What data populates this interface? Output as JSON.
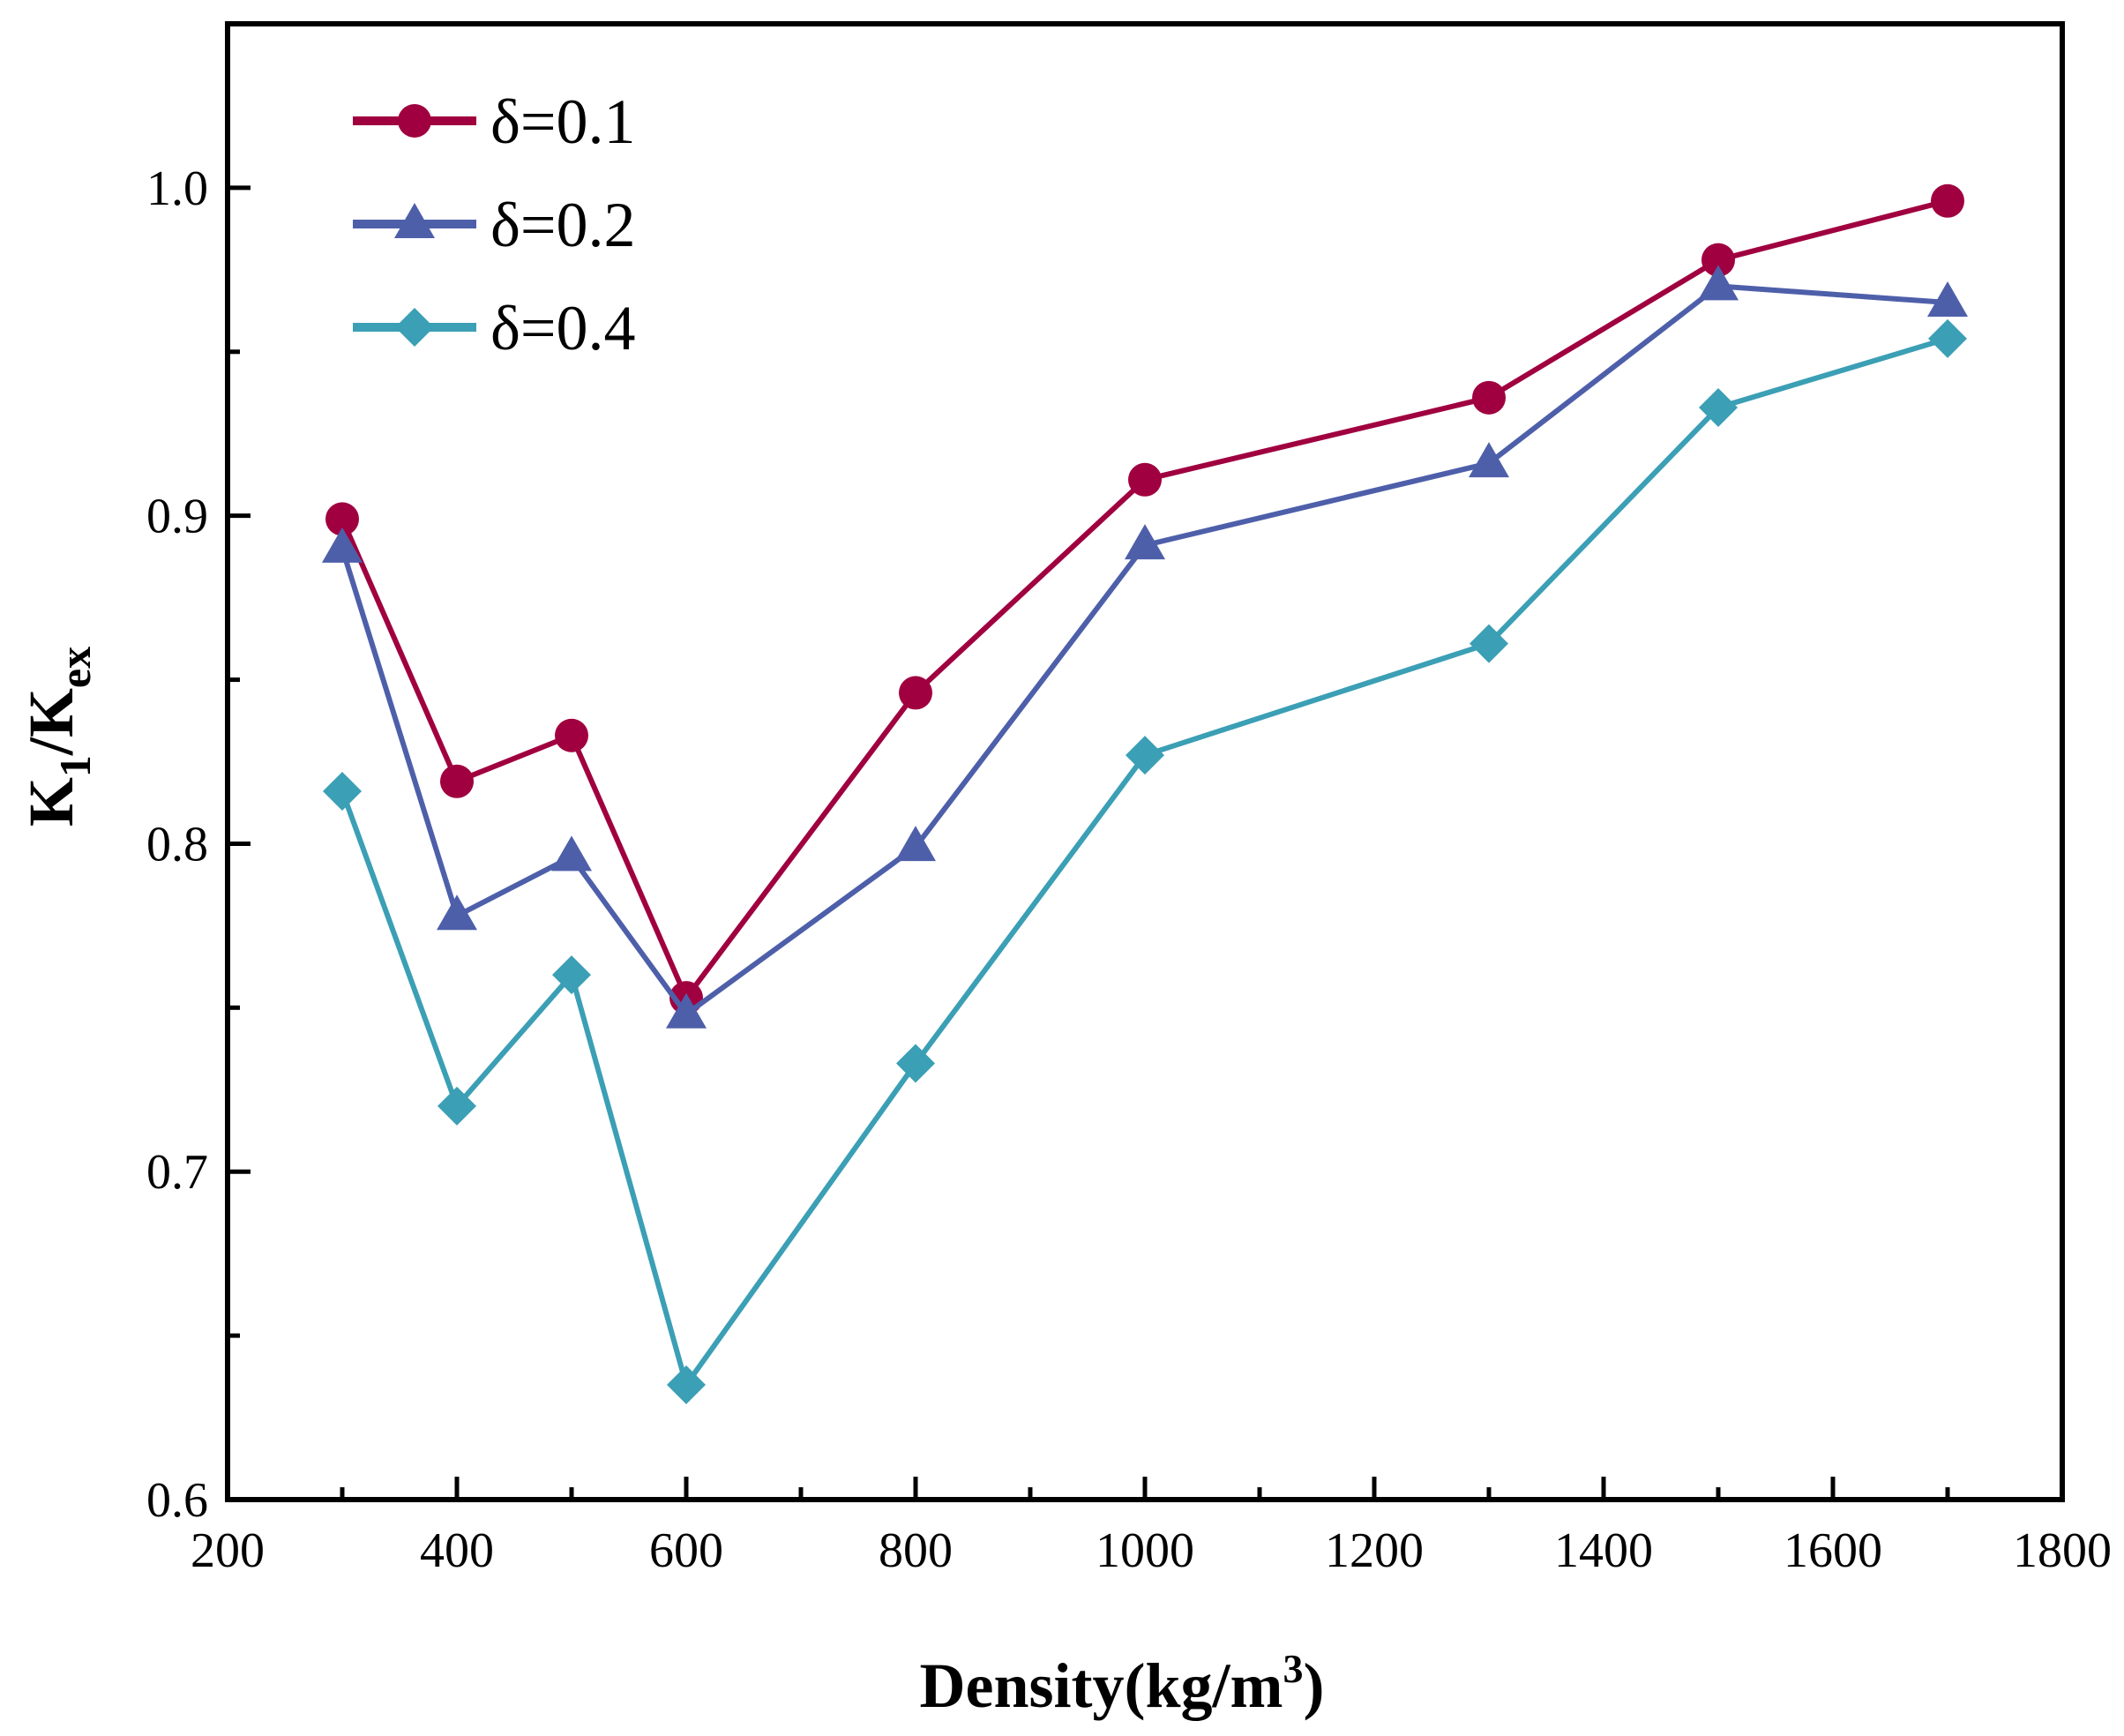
{
  "chart_data": {
    "type": "line",
    "title": "",
    "xlabel": "Density(kg/m3)",
    "xlabel_parts": {
      "main": "Density(kg/m",
      "sup": "3",
      "close": ")"
    },
    "ylabel": "K1/Kex",
    "ylabel_parts": {
      "k1": "K",
      "k1_sub": "1",
      "slash": "/",
      "kex": "K",
      "kex_sub": "ex"
    },
    "xlim": [
      200,
      1800
    ],
    "ylim": [
      0.6,
      1.05
    ],
    "x_ticks": [
      "200",
      "400",
      "600",
      "800",
      "1000",
      "1200",
      "1400",
      "1600",
      "1800"
    ],
    "y_ticks": [
      "0.6",
      "0.7",
      "0.8",
      "0.9",
      "1.0"
    ],
    "x": [
      300,
      400,
      500,
      600,
      800,
      1000,
      1300,
      1500,
      1700
    ],
    "series": [
      {
        "name": "δ=0.1",
        "color": "#A0003F",
        "marker": "circle",
        "values": [
          0.899,
          0.819,
          0.833,
          0.753,
          0.846,
          0.911,
          0.936,
          0.978,
          0.996
        ]
      },
      {
        "name": "δ=0.2",
        "color": "#4E5FAA",
        "marker": "triangle",
        "values": [
          0.89,
          0.778,
          0.796,
          0.748,
          0.799,
          0.891,
          0.916,
          0.97,
          0.965
        ]
      },
      {
        "name": "δ=0.4",
        "color": "#3B9FB5",
        "marker": "diamond",
        "values": [
          0.816,
          0.72,
          0.76,
          0.635,
          0.733,
          0.827,
          0.861,
          0.933,
          0.954
        ]
      }
    ],
    "legend_position": "top-left",
    "grid": false
  }
}
